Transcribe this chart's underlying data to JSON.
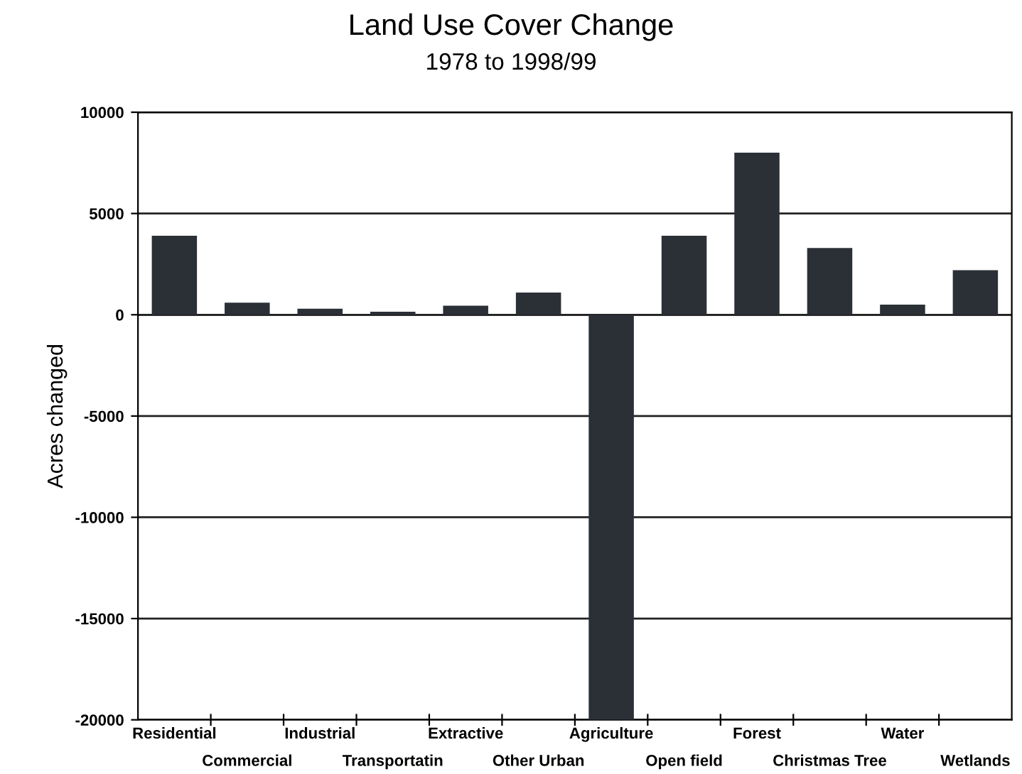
{
  "chart_data": {
    "type": "bar",
    "title": "Land Use Cover Change",
    "subtitle": "1978 to 1998/99",
    "ylabel": "Acres changed",
    "categories": [
      "Residential",
      "Commercial",
      "Industrial",
      "Transportatin",
      "Extractive",
      "Other Urban",
      "Agriculture",
      "Open field",
      "Forest",
      "Christmas Tree",
      "Water",
      "Wetlands"
    ],
    "values": [
      3900,
      600,
      300,
      150,
      450,
      1100,
      -20000,
      3900,
      8000,
      3300,
      500,
      2200
    ],
    "color": "#2b2f36",
    "ylim": [
      -20000,
      10000
    ],
    "yticks": [
      -20000,
      -15000,
      -10000,
      -5000,
      0,
      5000,
      10000
    ],
    "grid": "y"
  }
}
